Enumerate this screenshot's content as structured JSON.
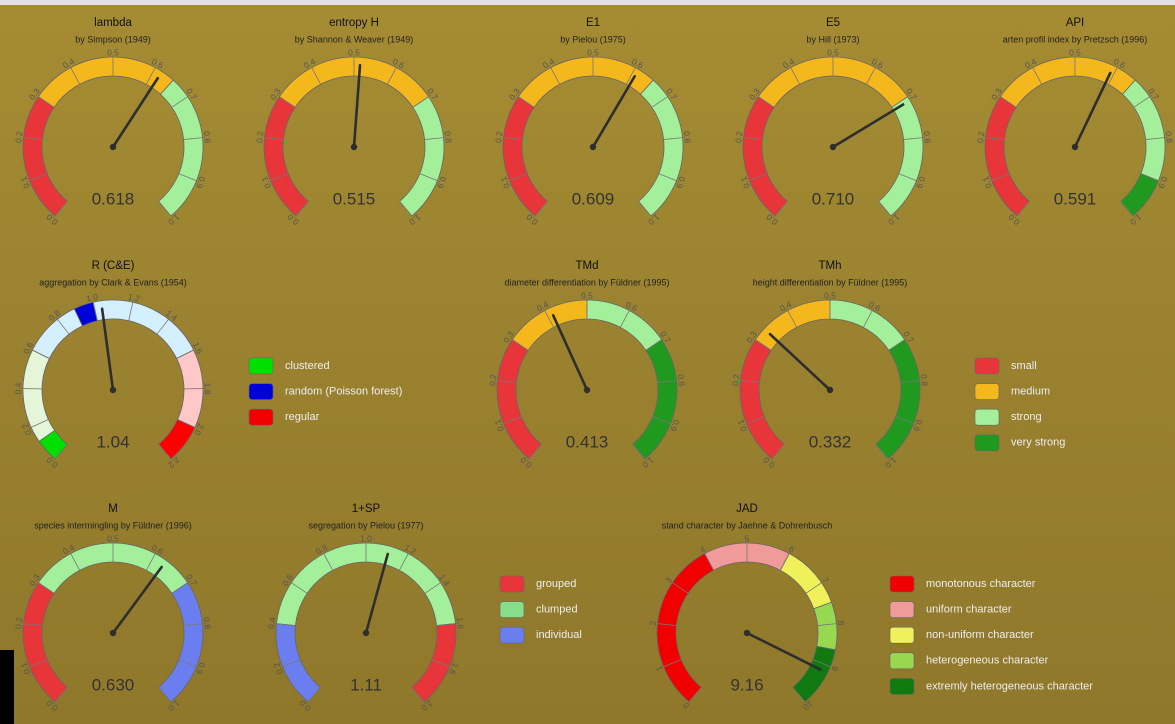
{
  "gauges": [
    {
      "title": "lambda",
      "subtitle": "by Simpson (1949)",
      "value": 0.618,
      "lim": [
        0,
        1
      ],
      "ticks": [
        {
          "value": 0,
          "label": "0.0"
        },
        0.1,
        0.2,
        0.3,
        0.4,
        0.5,
        0.6,
        0.7,
        0.8,
        0.9,
        {
          "value": 1,
          "label": "1.0"
        }
      ],
      "bands": [
        {
          "from": 0,
          "to": 0.3,
          "color": "#e8353a"
        },
        {
          "from": 0.3,
          "to": 0.65,
          "color": "#f5b81c"
        },
        {
          "from": 0.65,
          "to": 1,
          "color": "#a4f09a"
        }
      ]
    },
    {
      "title": "entropy H",
      "subtitle": "by Shannon & Weaver (1949)",
      "value": 0.515,
      "lim": [
        0,
        1
      ],
      "ticks": [
        {
          "value": 0,
          "label": "0.0"
        },
        0.1,
        0.2,
        0.3,
        0.4,
        0.5,
        0.6,
        0.7,
        0.8,
        0.9,
        {
          "value": 1,
          "label": "1.0"
        }
      ],
      "bands": [
        {
          "from": 0,
          "to": 0.3,
          "color": "#e8353a"
        },
        {
          "from": 0.3,
          "to": 0.7,
          "color": "#f5b81c"
        },
        {
          "from": 0.7,
          "to": 1,
          "color": "#a4f09a"
        }
      ]
    },
    {
      "title": "E1",
      "subtitle": "by Pielou (1975)",
      "value": 0.609,
      "lim": [
        0,
        1
      ],
      "ticks": [
        {
          "value": 0,
          "label": "0.0"
        },
        0.1,
        0.2,
        0.3,
        0.4,
        0.5,
        0.6,
        0.7,
        0.8,
        0.9,
        {
          "value": 1,
          "label": "1.0"
        }
      ],
      "bands": [
        {
          "from": 0,
          "to": 0.3,
          "color": "#e8353a"
        },
        {
          "from": 0.3,
          "to": 0.65,
          "color": "#f5b81c"
        },
        {
          "from": 0.65,
          "to": 1,
          "color": "#a4f09a"
        }
      ]
    },
    {
      "title": "E5",
      "subtitle": "by Hill (1973)",
      "value": 0.71,
      "value_label": "0.710",
      "lim": [
        0,
        1
      ],
      "ticks": [
        {
          "value": 0,
          "label": "0.0"
        },
        0.1,
        0.2,
        0.3,
        0.4,
        0.5,
        0.6,
        0.7,
        0.8,
        0.9,
        {
          "value": 1,
          "label": "1.0"
        }
      ],
      "bands": [
        {
          "from": 0,
          "to": 0.3,
          "color": "#e8353a"
        },
        {
          "from": 0.3,
          "to": 0.7,
          "color": "#f5b81c"
        },
        {
          "from": 0.7,
          "to": 1,
          "color": "#a4f09a"
        }
      ]
    },
    {
      "title": "API",
      "subtitle": "arten profil index by Pretzsch (1996)",
      "value": 0.591,
      "lim": [
        0,
        1
      ],
      "ticks": [
        {
          "value": 0,
          "label": "0.0"
        },
        0.1,
        0.2,
        0.3,
        0.4,
        0.5,
        0.6,
        0.7,
        0.8,
        0.9,
        {
          "value": 1,
          "label": "1.0"
        }
      ],
      "bands": [
        {
          "from": 0,
          "to": 0.3,
          "color": "#e8353a"
        },
        {
          "from": 0.3,
          "to": 0.65,
          "color": "#f5b81c"
        },
        {
          "from": 0.65,
          "to": 0.9,
          "color": "#a4f09a"
        },
        {
          "from": 0.9,
          "to": 1,
          "color": "#1f9a1f"
        }
      ]
    },
    {
      "title": "R (C&E)",
      "subtitle": "aggregation by Clark & Evans (1954)",
      "value": 1.04,
      "lim": [
        0,
        2.2
      ],
      "ticks": [
        {
          "value": 0,
          "label": "0.0"
        },
        0.2,
        0.4,
        0.6,
        0.8,
        {
          "value": 1,
          "label": "1.0"
        },
        1.2,
        1.4,
        1.6,
        1.8,
        {
          "value": 2,
          "label": "2.0"
        },
        2.2
      ],
      "bands": [
        {
          "from": 0,
          "to": 0.12,
          "color": "#00e000"
        },
        {
          "from": 0.12,
          "to": 0.6,
          "color": "#e4f5d8"
        },
        {
          "from": 0.6,
          "to": 0.9,
          "color": "#d4f0ff"
        },
        {
          "from": 0.9,
          "to": 1.0,
          "color": "#0000d8"
        },
        {
          "from": 1.0,
          "to": 1.6,
          "color": "#d4f0ff"
        },
        {
          "from": 1.6,
          "to": 2.0,
          "color": "#ffc8c8"
        },
        {
          "from": 2.0,
          "to": 2.2,
          "color": "#ff0000"
        }
      ]
    },
    {
      "title": "TMd",
      "subtitle": "diameter differentiation by Füldner (1995)",
      "value": 0.413,
      "lim": [
        0,
        1
      ],
      "ticks": [
        {
          "value": 0,
          "label": "0.0"
        },
        0.1,
        0.2,
        0.3,
        0.4,
        0.5,
        0.6,
        0.7,
        0.8,
        0.9,
        {
          "value": 1,
          "label": "1.0"
        }
      ],
      "bands": [
        {
          "from": 0,
          "to": 0.3,
          "color": "#e8353a"
        },
        {
          "from": 0.3,
          "to": 0.5,
          "color": "#f5b81c"
        },
        {
          "from": 0.5,
          "to": 0.7,
          "color": "#a4f09a"
        },
        {
          "from": 0.7,
          "to": 1,
          "color": "#1f9a1f"
        }
      ]
    },
    {
      "title": "TMh",
      "subtitle": "height differentiation by Füldner (1995)",
      "value": 0.332,
      "lim": [
        0,
        1
      ],
      "ticks": [
        {
          "value": 0,
          "label": "0.0"
        },
        0.1,
        0.2,
        0.3,
        0.4,
        0.5,
        0.6,
        0.7,
        0.8,
        0.9,
        {
          "value": 1,
          "label": "1.0"
        }
      ],
      "bands": [
        {
          "from": 0,
          "to": 0.3,
          "color": "#e8353a"
        },
        {
          "from": 0.3,
          "to": 0.5,
          "color": "#f5b81c"
        },
        {
          "from": 0.5,
          "to": 0.7,
          "color": "#a4f09a"
        },
        {
          "from": 0.7,
          "to": 1,
          "color": "#1f9a1f"
        }
      ]
    },
    {
      "title": "M",
      "subtitle": "species intermingling by Füldner (1996)",
      "value": 0.63,
      "value_label": "0.630",
      "lim": [
        0,
        1
      ],
      "ticks": [
        {
          "value": 0,
          "label": "0.0"
        },
        0.1,
        0.2,
        0.3,
        0.4,
        0.5,
        0.6,
        0.7,
        0.8,
        0.9,
        {
          "value": 1,
          "label": "1.0"
        }
      ],
      "bands": [
        {
          "from": 0,
          "to": 0.3,
          "color": "#e8353a"
        },
        {
          "from": 0.3,
          "to": 0.7,
          "color": "#a4f09a"
        },
        {
          "from": 0.7,
          "to": 1,
          "color": "#6a7ef0"
        }
      ]
    },
    {
      "title": "1+SP",
      "subtitle": "segregation by Pielou (1977)",
      "value": 1.11,
      "lim": [
        0,
        2
      ],
      "ticks": [
        {
          "value": 0,
          "label": "0.0"
        },
        0.2,
        0.4,
        0.6,
        0.8,
        {
          "value": 1,
          "label": "1.0"
        },
        1.2,
        1.4,
        1.6,
        1.8,
        {
          "value": 2,
          "label": "2.0"
        }
      ],
      "bands": [
        {
          "from": 0,
          "to": 0.4,
          "color": "#6a7ef0"
        },
        {
          "from": 0.4,
          "to": 1.6,
          "color": "#a4f09a"
        },
        {
          "from": 1.6,
          "to": 2,
          "color": "#e8353a"
        }
      ]
    },
    {
      "title": "JAD",
      "subtitle": "stand character by Jaehne & Dohrenbusch",
      "value": 9.16,
      "lim": [
        0,
        10
      ],
      "ticks": [
        0,
        1,
        2,
        3,
        4,
        5,
        6,
        7,
        8,
        9,
        10
      ],
      "bands": [
        {
          "from": 0,
          "to": 4,
          "color": "#f00000"
        },
        {
          "from": 4,
          "to": 6,
          "color": "#f09a9a"
        },
        {
          "from": 6,
          "to": 7.5,
          "color": "#f0f05a"
        },
        {
          "from": 7.5,
          "to": 8.6,
          "color": "#98d850"
        },
        {
          "from": 8.6,
          "to": 10,
          "color": "#107a10"
        }
      ]
    }
  ],
  "legends": [
    {
      "items": [
        {
          "label": "clustered",
          "color": "#00e000"
        },
        {
          "label": "random (Poisson forest)",
          "color": "#0000d8"
        },
        {
          "label": "regular",
          "color": "#f00000"
        }
      ]
    },
    {
      "items": [
        {
          "label": "small",
          "color": "#e8353a"
        },
        {
          "label": "medium",
          "color": "#f5b81c"
        },
        {
          "label": "strong",
          "color": "#a4f09a"
        },
        {
          "label": "very strong",
          "color": "#1f9a1f"
        }
      ]
    },
    {
      "items": [
        {
          "label": "grouped",
          "color": "#e8353a"
        },
        {
          "label": "clumped",
          "color": "#88dd88"
        },
        {
          "label": "individual",
          "color": "#6a7ef0"
        }
      ]
    },
    {
      "items": [
        {
          "label": "monotonous character",
          "color": "#f00000"
        },
        {
          "label": "uniform character",
          "color": "#f09a9a"
        },
        {
          "label": "non-uniform character",
          "color": "#f0f05a"
        },
        {
          "label": "heterogeneous character",
          "color": "#98d850"
        },
        {
          "label": "extremly heterogeneous character",
          "color": "#107a10"
        }
      ]
    }
  ]
}
